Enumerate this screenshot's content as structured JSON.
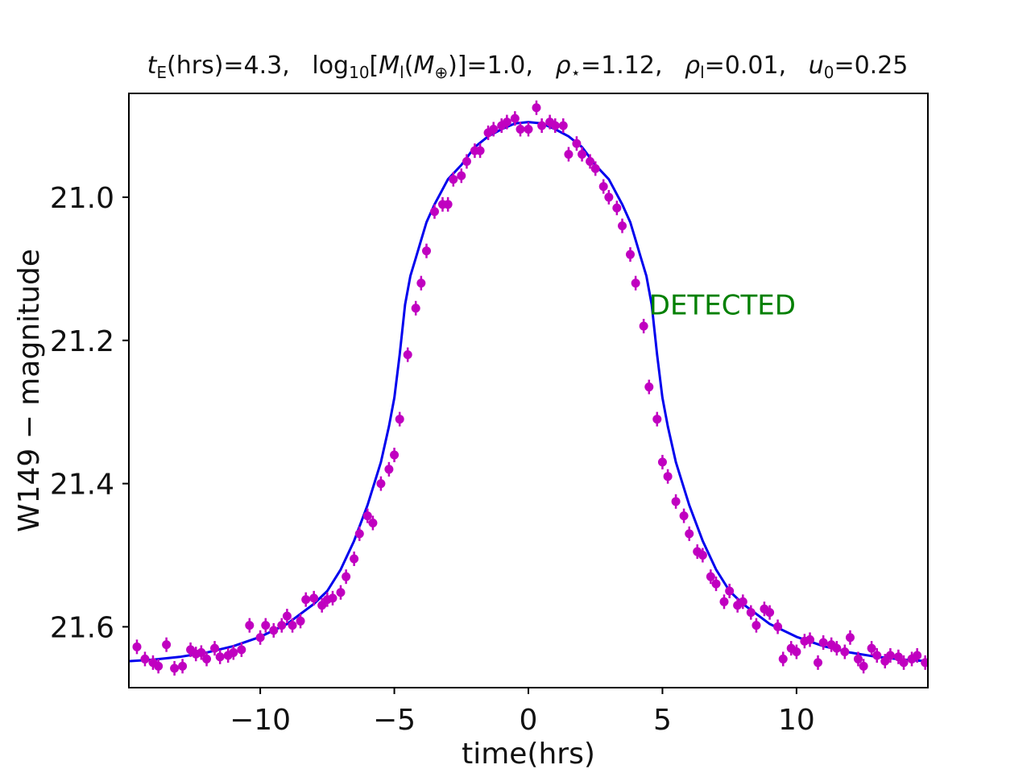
{
  "chart_data": {
    "type": "scatter",
    "title_parts": {
      "tE_sym": "t",
      "tE_sub": "E",
      "tE_rest": "(hrs)=4.3,",
      "log_pre": "log",
      "log_sub": "10",
      "log_open": "[",
      "M_sym": "M",
      "M_sub": "l",
      "M_mid": "(",
      "Mearth_sym": "M",
      "Mearth_sub": "⊕",
      "log_close": ")]=1.0,",
      "rhostar_sym": "ρ",
      "rhostar_sub": "⋆",
      "rhostar_rest": "=1.12,",
      "rhol_sym": "ρ",
      "rhol_sub": "l",
      "rhol_rest": "=0.01,",
      "u0_sym": "u",
      "u0_sub": "0",
      "u0_rest": "=0.25"
    },
    "xlabel": "time(hrs)",
    "ylabel": "W149 − magnitude",
    "xlim": [
      -14.9,
      14.9
    ],
    "ylim": [
      21.685,
      20.855
    ],
    "x_ticks": [
      -10,
      -5,
      0,
      5,
      10
    ],
    "x_tick_labels": [
      "−10",
      "−5",
      "0",
      "5",
      "10"
    ],
    "y_ticks": [
      21.0,
      21.2,
      21.4,
      21.6
    ],
    "y_tick_labels": [
      "21.0",
      "21.2",
      "21.4",
      "21.6"
    ],
    "annotation": {
      "text": "DETECTED",
      "x": 4.5,
      "y": 21.15,
      "color": "#008000"
    },
    "model_color": "#0000ee",
    "point_color": "#c000c0",
    "model": {
      "x": [
        -14.9,
        -14,
        -13,
        -12,
        -11,
        -10,
        -9,
        -8,
        -7.5,
        -7,
        -6.5,
        -6,
        -5.5,
        -5.2,
        -5.0,
        -4.8,
        -4.6,
        -4.4,
        -4.2,
        -4.0,
        -3.8,
        -3.5,
        -3,
        -2.5,
        -2,
        -1.5,
        -1,
        -0.5,
        0,
        0.5,
        1,
        1.5,
        2,
        2.5,
        3,
        3.5,
        3.8,
        4.0,
        4.2,
        4.4,
        4.6,
        4.8,
        5.0,
        5.2,
        5.5,
        6,
        6.5,
        7,
        7.5,
        8,
        9,
        10,
        11,
        12,
        13,
        14,
        14.9
      ],
      "y": [
        21.648,
        21.646,
        21.642,
        21.636,
        21.627,
        21.614,
        21.596,
        21.568,
        21.55,
        21.52,
        21.48,
        21.43,
        21.37,
        21.32,
        21.28,
        21.22,
        21.15,
        21.11,
        21.085,
        21.06,
        21.035,
        21.01,
        20.975,
        20.955,
        20.93,
        20.915,
        20.905,
        20.897,
        20.895,
        20.897,
        20.905,
        20.915,
        20.93,
        20.955,
        20.975,
        21.01,
        21.035,
        21.06,
        21.085,
        21.11,
        21.15,
        21.22,
        21.28,
        21.32,
        21.37,
        21.43,
        21.48,
        21.52,
        21.55,
        21.568,
        21.596,
        21.614,
        21.627,
        21.636,
        21.642,
        21.646,
        21.648
      ]
    },
    "points": {
      "x": [
        -14.6,
        -14.3,
        -14.0,
        -13.8,
        -13.5,
        -13.2,
        -12.9,
        -12.6,
        -12.4,
        -12.2,
        -12.0,
        -11.7,
        -11.5,
        -11.2,
        -11.0,
        -10.7,
        -10.4,
        -10.0,
        -9.8,
        -9.5,
        -9.2,
        -9.0,
        -8.8,
        -8.5,
        -8.3,
        -8.0,
        -7.7,
        -7.5,
        -7.3,
        -7.0,
        -6.8,
        -6.5,
        -6.3,
        -6.0,
        -5.8,
        -5.5,
        -5.2,
        -5.0,
        -4.8,
        -4.5,
        -4.2,
        -4.0,
        -3.8,
        -3.5,
        -3.2,
        -3.0,
        -2.8,
        -2.5,
        -2.3,
        -2.0,
        -1.8,
        -1.5,
        -1.3,
        -1.0,
        -0.8,
        -0.5,
        -0.3,
        0.0,
        0.3,
        0.5,
        0.8,
        1.0,
        1.3,
        1.5,
        1.8,
        2.0,
        2.3,
        2.5,
        2.8,
        3.0,
        3.3,
        3.5,
        3.8,
        4.0,
        4.3,
        4.5,
        4.8,
        5.0,
        5.2,
        5.5,
        5.8,
        6.0,
        6.3,
        6.5,
        6.8,
        7.0,
        7.3,
        7.5,
        7.8,
        8.0,
        8.3,
        8.5,
        8.8,
        9.0,
        9.3,
        9.5,
        9.8,
        10.0,
        10.3,
        10.5,
        10.8,
        11.0,
        11.3,
        11.5,
        11.8,
        12.0,
        12.3,
        12.5,
        12.8,
        13.0,
        13.3,
        13.5,
        13.8,
        14.0,
        14.3,
        14.5,
        14.8
      ],
      "y": [
        21.628,
        21.645,
        21.65,
        21.655,
        21.625,
        21.658,
        21.655,
        21.632,
        21.638,
        21.636,
        21.645,
        21.63,
        21.642,
        21.64,
        21.636,
        21.632,
        21.598,
        21.615,
        21.598,
        21.605,
        21.598,
        21.585,
        21.598,
        21.592,
        21.562,
        21.56,
        21.57,
        21.562,
        21.56,
        21.552,
        21.53,
        21.505,
        21.47,
        21.445,
        21.455,
        21.4,
        21.38,
        21.36,
        21.31,
        21.22,
        21.155,
        21.12,
        21.075,
        21.02,
        21.01,
        21.01,
        20.975,
        20.97,
        20.95,
        20.935,
        20.935,
        20.91,
        20.905,
        20.9,
        20.895,
        20.89,
        20.905,
        20.905,
        20.875,
        20.9,
        20.895,
        20.9,
        20.9,
        20.94,
        20.925,
        20.94,
        20.95,
        20.96,
        20.985,
        21.0,
        21.015,
        21.04,
        21.08,
        21.12,
        21.18,
        21.265,
        21.31,
        21.37,
        21.39,
        21.425,
        21.445,
        21.47,
        21.495,
        21.5,
        21.53,
        21.54,
        21.565,
        21.55,
        21.57,
        21.565,
        21.58,
        21.598,
        21.575,
        21.58,
        21.6,
        21.645,
        21.63,
        21.635,
        21.62,
        21.618,
        21.65,
        21.622,
        21.625,
        21.63,
        21.635,
        21.615,
        21.645,
        21.655,
        21.63,
        21.64,
        21.648,
        21.64,
        21.642,
        21.65,
        21.645,
        21.64,
        21.65
      ]
    }
  }
}
